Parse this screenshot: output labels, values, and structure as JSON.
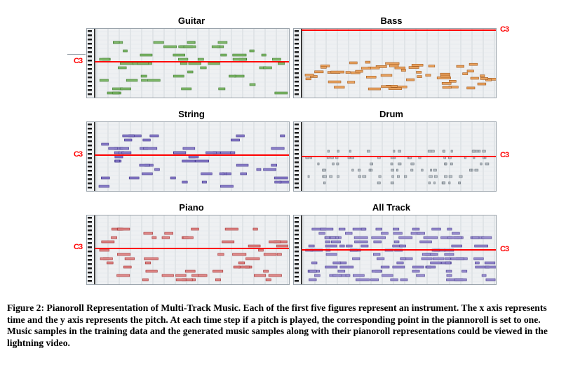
{
  "figure": {
    "panels": [
      {
        "id": "guitar",
        "title": "Guitar",
        "c3_label": "C3",
        "c3_side": "left",
        "note_color": "#7fb86a",
        "note_border": "#3f7a30"
      },
      {
        "id": "bass",
        "title": "Bass",
        "c3_label": "C3",
        "c3_side": "right",
        "note_color": "#e9a25e",
        "note_border": "#a05a20"
      },
      {
        "id": "string",
        "title": "String",
        "c3_label": "C3",
        "c3_side": "left",
        "note_color": "#8b7fc9",
        "note_border": "#3c2f8a"
      },
      {
        "id": "drum",
        "title": "Drum",
        "c3_label": "C3",
        "c3_side": "right",
        "note_color": "#b8c0c6",
        "note_border": "#707880"
      },
      {
        "id": "piano",
        "title": "Piano",
        "c3_label": "C3",
        "c3_side": "left",
        "note_color": "#e08a8a",
        "note_border": "#a02a2a"
      },
      {
        "id": "alltrack",
        "title": "All Track",
        "c3_label": "C3",
        "c3_side": "right",
        "note_color": "#9a8fd0",
        "note_border": "#4a3f90"
      }
    ],
    "c3_line_color": "#ff0000"
  },
  "caption": {
    "label": "Figure 2:",
    "text": "Pianoroll Representation of Multi-Track Music.  Each of the first five figures represent an instrument. The x axis represents time and the y axis represents the pitch. At each time step if a pitch is played, the corresponding point in the piannoroll is set to one. Music samples in the training data and the generated music samples along with their pianoroll representations could be viewed in the lightning video."
  }
}
